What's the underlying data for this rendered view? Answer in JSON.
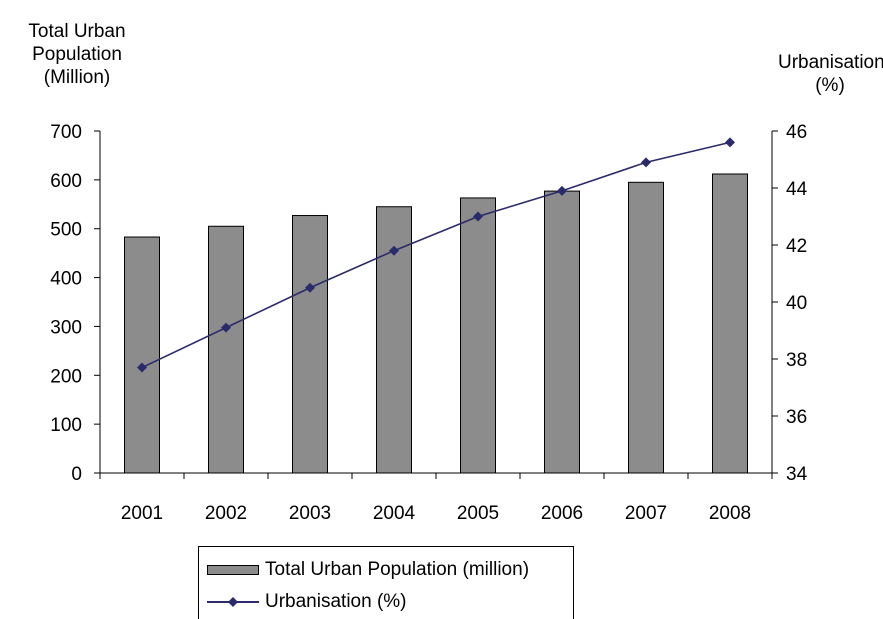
{
  "chart_data": {
    "type": "bar+line",
    "categories": [
      "2001",
      "2002",
      "2003",
      "2004",
      "2005",
      "2006",
      "2007",
      "2008"
    ],
    "series": [
      {
        "name": "Total Urban Population (million)",
        "type": "bar",
        "axis": "left",
        "color": "#8c8c8c",
        "values": [
          483,
          505,
          527,
          545,
          563,
          577,
          595,
          612
        ]
      },
      {
        "name": "Urbanisation (%)",
        "type": "line",
        "axis": "right",
        "color": "#2b2b6b",
        "marker": "diamond",
        "values": [
          37.7,
          39.1,
          40.5,
          41.8,
          43.0,
          43.9,
          44.9,
          45.6
        ]
      }
    ],
    "left_axis": {
      "title_lines": [
        "Total Urban",
        "Population",
        "(Million)"
      ],
      "min": 0,
      "max": 700,
      "ticks": [
        0,
        100,
        200,
        300,
        400,
        500,
        600,
        700
      ]
    },
    "right_axis": {
      "title_lines": [
        "Urbanisation",
        "(%)"
      ],
      "min": 34,
      "max": 46,
      "ticks": [
        34,
        36,
        38,
        40,
        42,
        44,
        46
      ]
    },
    "grid": false,
    "legend_position": "bottom"
  }
}
